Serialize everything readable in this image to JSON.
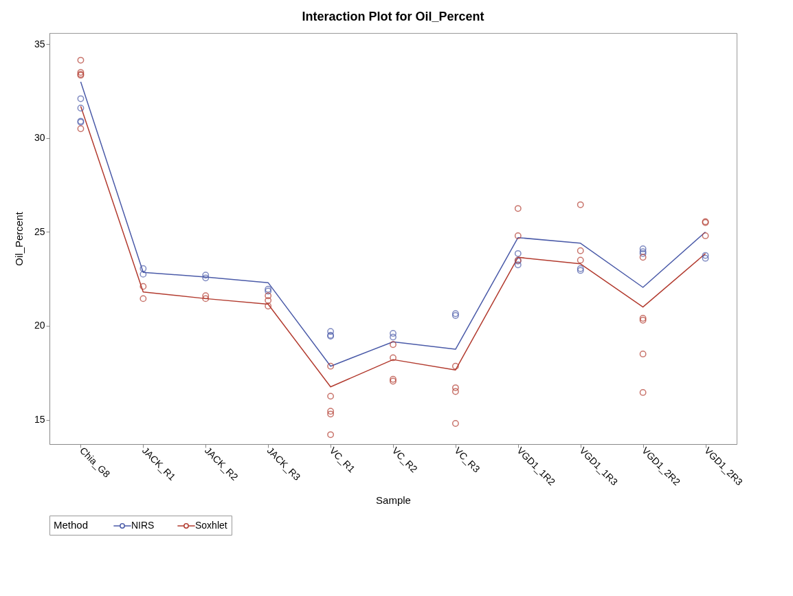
{
  "chart_data": {
    "type": "line",
    "title": "Interaction Plot for Oil_Percent",
    "xlabel": "Sample",
    "ylabel": "Oil_Percent",
    "legend_title": "Method",
    "categories": [
      "Chia_G8",
      "JACK_R1",
      "JACK_R2",
      "JACK_R3",
      "VC_R1",
      "VC_R2",
      "VC_R3",
      "VGD1_1R2",
      "VGD1_1R3",
      "VGD1_2R2",
      "VGD1_2R3"
    ],
    "series": [
      {
        "name": "NIRS",
        "color": "#4a5aa8",
        "values": [
          33.0,
          22.85,
          22.6,
          22.3,
          17.85,
          19.15,
          18.75,
          24.7,
          24.4,
          22.05,
          25.0
        ]
      },
      {
        "name": "Soxhlet",
        "color": "#b23a2e",
        "values": [
          31.7,
          21.8,
          21.45,
          21.15,
          16.75,
          18.2,
          17.65,
          23.65,
          23.3,
          21.0,
          23.85
        ]
      },
      {
        "type": "scatter",
        "marker": "circle",
        "color": "#4a5aa8",
        "x": [
          "Chia_G8",
          "Chia_G8",
          "Chia_G8",
          "Chia_G8",
          "JACK_R1",
          "JACK_R1",
          "JACK_R2",
          "JACK_R2",
          "JACK_R3",
          "JACK_R3",
          "VC_R1",
          "VC_R1",
          "VC_R1",
          "VC_R2",
          "VC_R2",
          "VC_R3",
          "VC_R3",
          "VGD1_1R2",
          "VGD1_1R2",
          "VGD1_1R2",
          "VGD1_1R3",
          "VGD1_1R3",
          "VGD1_2R2",
          "VGD1_2R2",
          "VGD1_2R2",
          "VGD1_2R3",
          "VGD1_2R3"
        ],
        "values": [
          32.1,
          31.6,
          30.9,
          30.85,
          23.05,
          22.75,
          22.7,
          22.55,
          21.95,
          21.85,
          19.7,
          19.5,
          19.45,
          19.6,
          19.4,
          20.65,
          20.55,
          23.85,
          23.45,
          23.25,
          23.05,
          22.95,
          24.1,
          23.95,
          23.85,
          23.75,
          23.6
        ]
      },
      {
        "type": "scatter",
        "marker": "circle",
        "color": "#b23a2e",
        "x": [
          "Chia_G8",
          "Chia_G8",
          "Chia_G8",
          "Chia_G8",
          "Chia_G8",
          "JACK_R1",
          "JACK_R1",
          "JACK_R2",
          "JACK_R2",
          "JACK_R3",
          "JACK_R3",
          "JACK_R3",
          "VC_R1",
          "VC_R1",
          "VC_R1",
          "VC_R1",
          "VC_R1",
          "VC_R2",
          "VC_R2",
          "VC_R2",
          "VC_R2",
          "VC_R3",
          "VC_R3",
          "VC_R3",
          "VC_R3",
          "VGD1_1R2",
          "VGD1_1R2",
          "VGD1_1R2",
          "VGD1_1R3",
          "VGD1_1R3",
          "VGD1_1R3",
          "VGD1_2R2",
          "VGD1_2R2",
          "VGD1_2R2",
          "VGD1_2R2",
          "VGD1_2R2",
          "VGD1_2R3",
          "VGD1_2R3",
          "VGD1_2R3"
        ],
        "values": [
          34.15,
          33.5,
          33.4,
          33.35,
          30.5,
          22.1,
          21.45,
          21.6,
          21.45,
          21.6,
          21.35,
          21.05,
          17.85,
          16.25,
          15.45,
          15.3,
          14.2,
          19.0,
          18.3,
          17.15,
          17.05,
          17.85,
          16.7,
          16.5,
          14.8,
          26.25,
          24.8,
          23.5,
          26.45,
          24.0,
          23.5,
          23.65,
          20.4,
          20.3,
          18.5,
          16.45,
          25.55,
          25.5,
          24.8
        ]
      }
    ],
    "ylim": [
      13.7,
      35.6
    ],
    "yticks": [
      15,
      20,
      25,
      30,
      35
    ],
    "grid": false,
    "legend": "bottom"
  }
}
